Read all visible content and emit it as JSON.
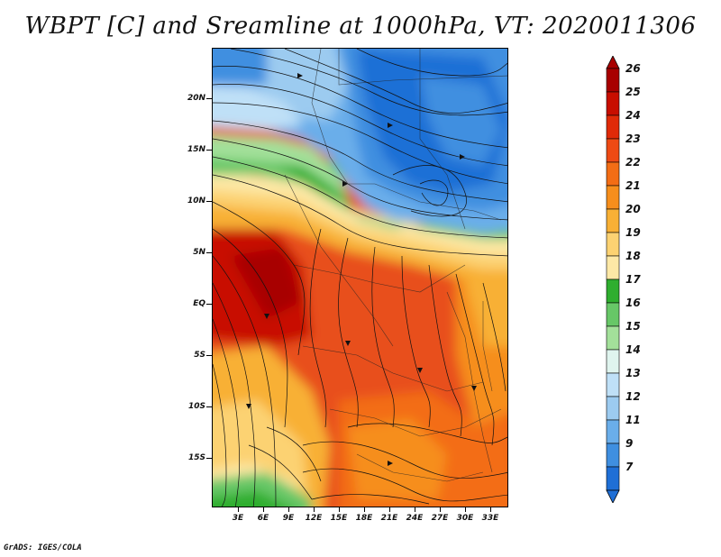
{
  "title": "WBPT [C] and Sreamline at 1000hPa, VT: 2020011306",
  "credit": "GrADS: IGES/COLA",
  "map": {
    "lat_labels": [
      "20N",
      "15N",
      "10N",
      "5N",
      "EQ",
      "5S",
      "10S",
      "15S"
    ],
    "lon_labels": [
      "3E",
      "6E",
      "9E",
      "12E",
      "15E",
      "18E",
      "21E",
      "24E",
      "27E",
      "30E",
      "33E"
    ]
  },
  "colorbar": {
    "labels": [
      "26",
      "25",
      "24",
      "23",
      "22",
      "21",
      "20",
      "19",
      "18",
      "17",
      "16",
      "15",
      "14",
      "13",
      "12",
      "11",
      "9",
      "7"
    ],
    "colors": [
      "#a80000",
      "#c80e00",
      "#e02a08",
      "#ee4a14",
      "#f36d15",
      "#f68e1c",
      "#f8b035",
      "#fcd272",
      "#fde8a6",
      "#2fae2f",
      "#67c767",
      "#a3e09a",
      "#dff4ee",
      "#bfe0f7",
      "#9ccbf0",
      "#6aaeea",
      "#3f8fe0",
      "#1f6fd6"
    ]
  }
}
